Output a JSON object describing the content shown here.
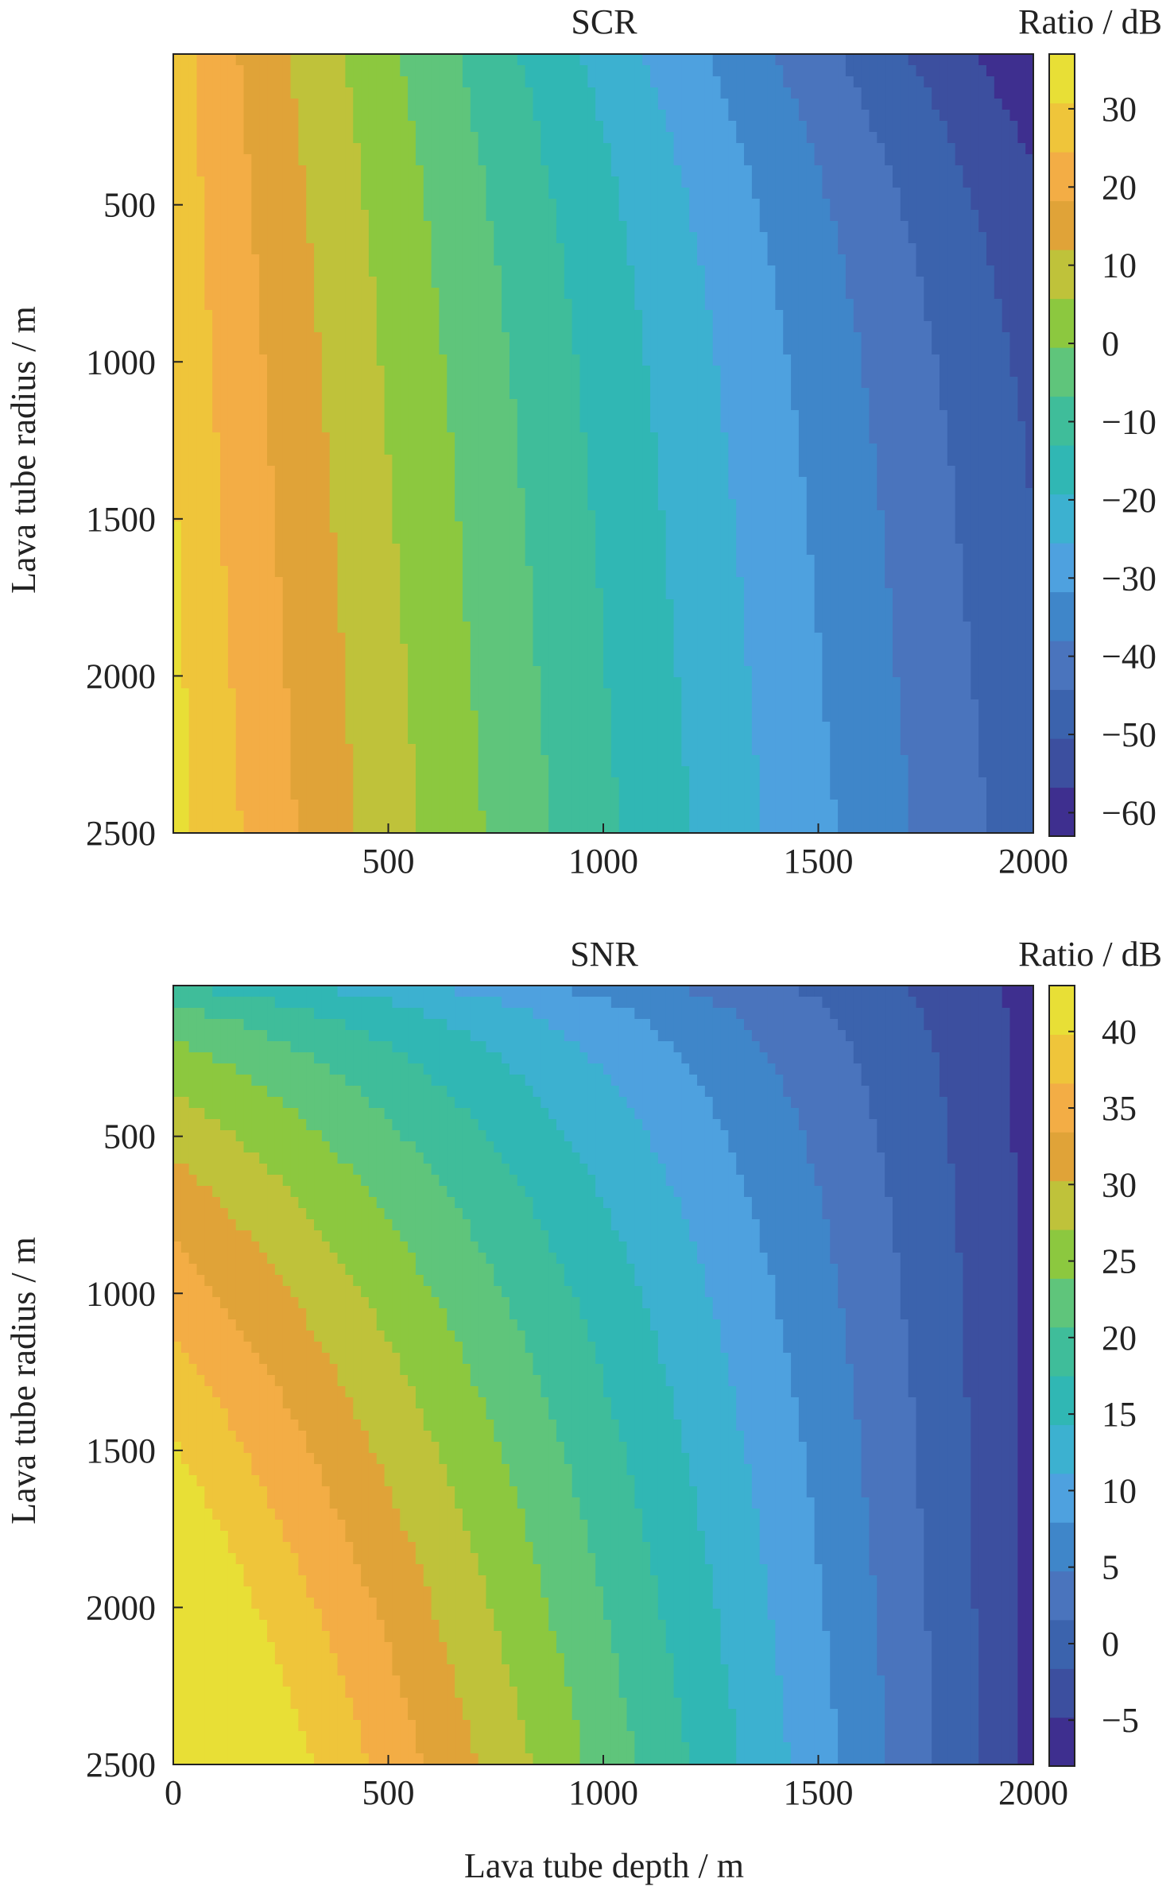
{
  "colormap": [
    "#3e2f8f",
    "#3c4f9f",
    "#3b63ad",
    "#4a74bd",
    "#3f86c9",
    "#4ea1df",
    "#3cb1d0",
    "#30b7b4",
    "#3fbd9a",
    "#5fc57b",
    "#8cc83f",
    "#bfc23a",
    "#e0a338",
    "#f3ad45",
    "#efc53a",
    "#e8df36"
  ],
  "chart_data": [
    {
      "type": "heatmap",
      "title": "SCR",
      "colorbar_label": "Ratio / dB",
      "xlabel": "",
      "ylabel": "Lava tube radius / m",
      "xlim": [
        0,
        2000
      ],
      "ylim": [
        2500,
        20
      ],
      "y_axis_inverted": true,
      "x_ticks": [
        "500",
        "1000",
        "1500",
        "2000"
      ],
      "y_ticks": [
        "500",
        "1000",
        "1500",
        "2000",
        "2500"
      ],
      "colorbar_range": [
        -63,
        37
      ],
      "colorbar_ticks": [
        "30",
        "20",
        "10",
        "0",
        "−10",
        "−20",
        "−30",
        "−40",
        "−50",
        "−60"
      ],
      "approx_values": {
        "near_surface_small_radius": 30,
        "at_depth_2000m": -55
      }
    },
    {
      "type": "heatmap",
      "title": "SNR",
      "colorbar_label": "Ratio / dB",
      "xlabel": "Lava tube depth / m",
      "ylabel": "Lava tube radius / m",
      "xlim": [
        0,
        2000
      ],
      "ylim": [
        2500,
        20
      ],
      "y_axis_inverted": true,
      "x_ticks": [
        "0",
        "500",
        "1000",
        "1500",
        "2000"
      ],
      "y_ticks": [
        "500",
        "1000",
        "1500",
        "2000",
        "2500"
      ],
      "colorbar_range": [
        -8,
        43
      ],
      "colorbar_ticks": [
        "40",
        "35",
        "30",
        "25",
        "20",
        "15",
        "10",
        "5",
        "0",
        "−5"
      ],
      "approx_values": {
        "max_at_depth0_radius2500": 42,
        "min_at_depth2000_radius20": -5
      }
    }
  ]
}
